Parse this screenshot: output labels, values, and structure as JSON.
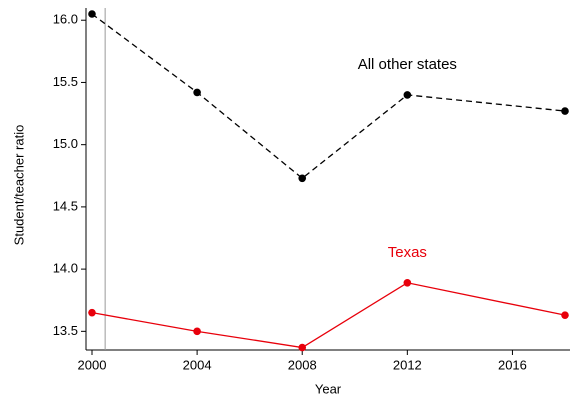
{
  "chart_data": {
    "type": "line",
    "xlabel": "Year",
    "ylabel": "Student/teacher ratio",
    "x": [
      2000,
      2004,
      2008,
      2012,
      2018
    ],
    "series": [
      {
        "name": "All other states",
        "color": "#000000",
        "linestyle": "dashed",
        "values": [
          16.05,
          15.42,
          14.73,
          15.4,
          15.27
        ]
      },
      {
        "name": "Texas",
        "color": "#e8000b",
        "linestyle": "solid",
        "values": [
          13.65,
          13.5,
          13.37,
          13.89,
          13.63
        ]
      }
    ],
    "xlim": [
      2000,
      2018
    ],
    "xticks": [
      2000,
      2004,
      2008,
      2012,
      2016
    ],
    "ylim": [
      13.35,
      16.05
    ],
    "yticks": [
      13.5,
      {
        "value": 14,
        "label": "14.0"
      },
      14.5,
      {
        "value": 15,
        "label": "15.0"
      },
      15.5,
      {
        "value": 16,
        "label": "16.0"
      }
    ],
    "vline": 2000.5
  }
}
